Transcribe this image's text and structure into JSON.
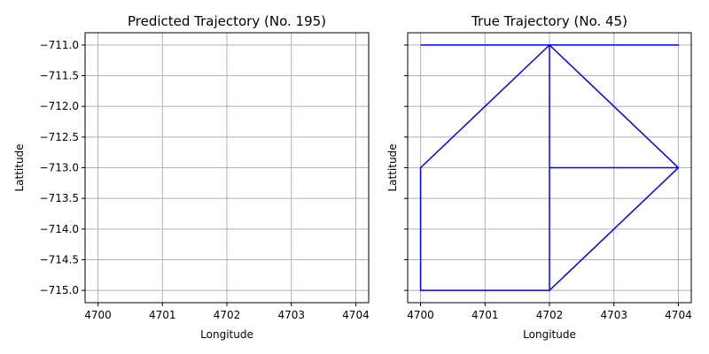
{
  "chart_data": [
    {
      "type": "line",
      "title": "Predicted Trajectory (No. 195)",
      "xlabel": "Longitude",
      "ylabel": "Lattitude",
      "xlim": [
        4699.8,
        4704.2
      ],
      "ylim": [
        -715.2,
        -710.8
      ],
      "xticks": [
        4700,
        4701,
        4702,
        4703,
        4704
      ],
      "xtick_labels": [
        "4700",
        "4701",
        "4702",
        "4703",
        "4704"
      ],
      "yticks": [
        -711.0,
        -711.5,
        -712.0,
        -712.5,
        -713.0,
        -713.5,
        -714.0,
        -714.5,
        -715.0
      ],
      "ytick_labels": [
        "−711.0",
        "−711.5",
        "−712.0",
        "−712.5",
        "−713.0",
        "−713.5",
        "−714.0",
        "−714.5",
        "−715.0"
      ],
      "grid": true,
      "series": []
    },
    {
      "type": "line",
      "title": "True Trajectory (No. 45)",
      "xlabel": "Longitude",
      "ylabel": "Lattitude",
      "xlim": [
        4699.8,
        4704.2
      ],
      "ylim": [
        -715.2,
        -710.8
      ],
      "xticks": [
        4700,
        4701,
        4702,
        4703,
        4704
      ],
      "xtick_labels": [
        "4700",
        "4701",
        "4702",
        "4703",
        "4704"
      ],
      "yticks": [
        -711.0,
        -711.5,
        -712.0,
        -712.5,
        -713.0,
        -713.5,
        -714.0,
        -714.5,
        -715.0
      ],
      "ytick_labels": [],
      "grid": true,
      "series": [
        {
          "color": "#0000ff",
          "x": [
            4700,
            4704,
            4702,
            4702,
            4700,
            4700,
            4702,
            4704,
            4702,
            4704,
            4702
          ],
          "y": [
            -711,
            -711,
            -711,
            -715,
            -715,
            -713,
            -711,
            -713,
            -713,
            -713,
            -715
          ]
        }
      ]
    }
  ]
}
